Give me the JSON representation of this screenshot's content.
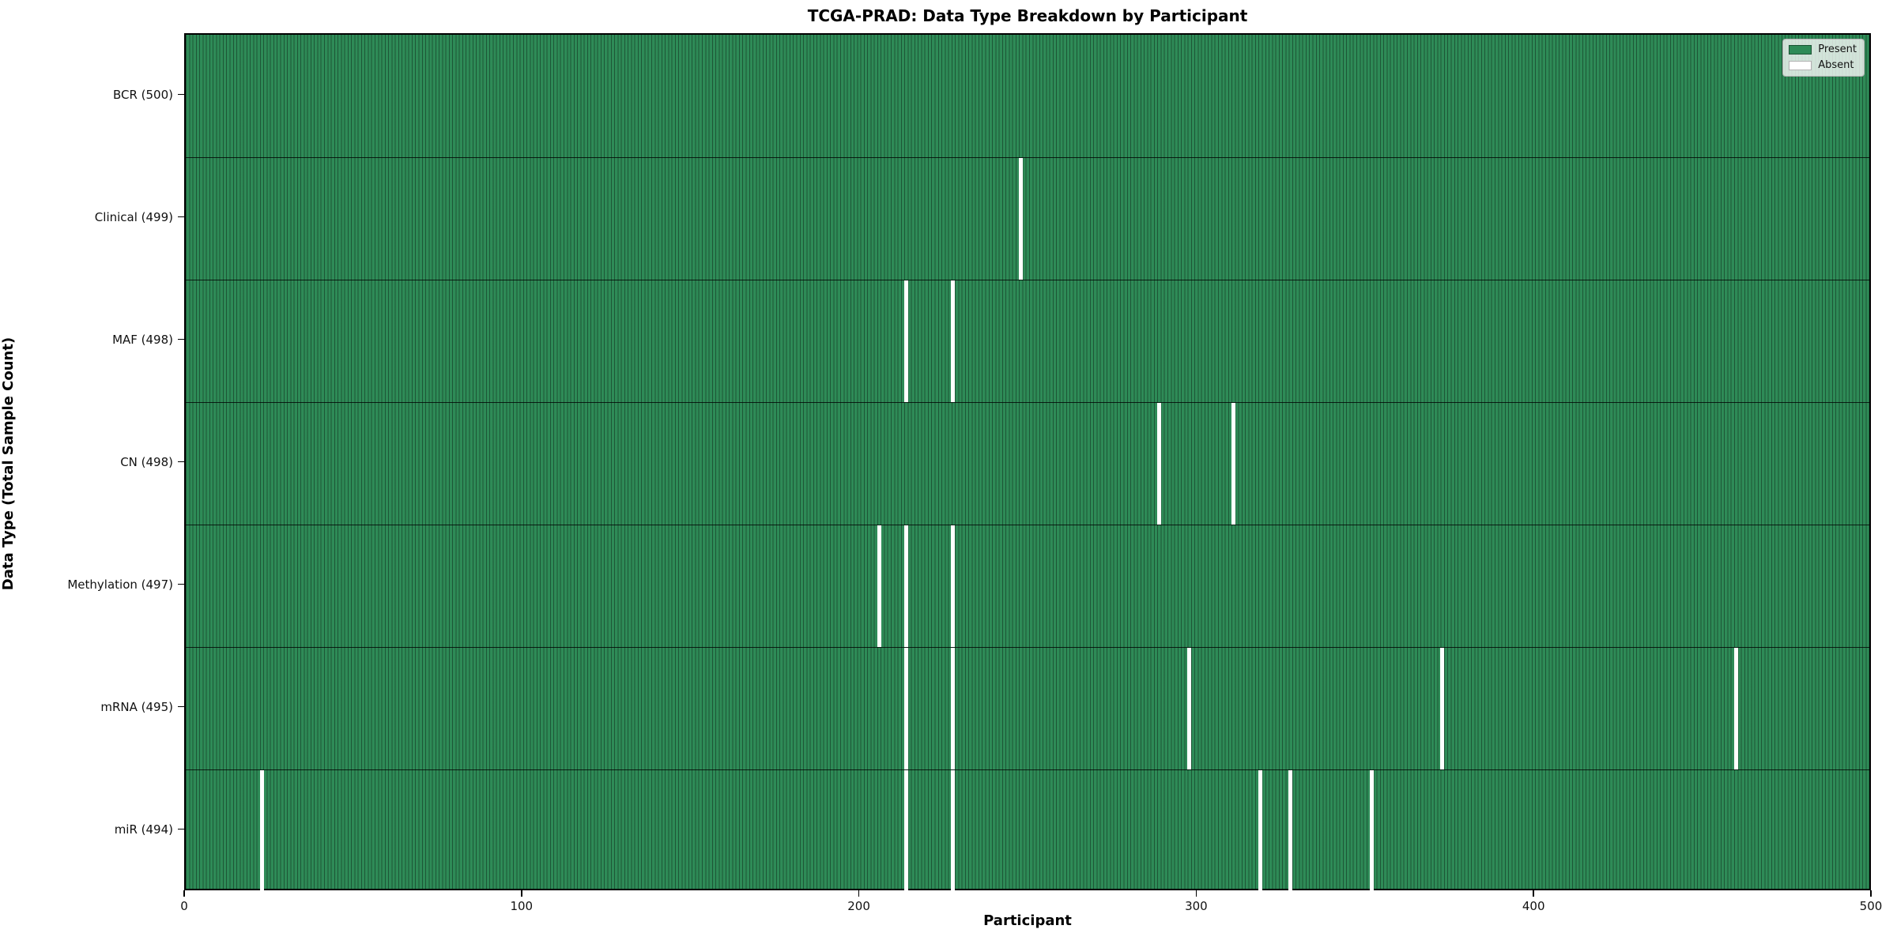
{
  "title": "TCGA-PRAD: Data Type Breakdown by Participant",
  "x_axis_title": "Participant",
  "y_axis_title": "Data Type (Total Sample Count)",
  "legend": {
    "present_label": "Present",
    "absent_label": "Absent"
  },
  "colors": {
    "present": "#2e8b57",
    "present_edge": "#1e5a39",
    "absent": "#ffffff",
    "row_divider": "#1a1a1a",
    "axis": "#000000",
    "legend_background": "#f4f4f4"
  },
  "chart_data": {
    "type": "heatmap",
    "title": "TCGA-PRAD: Data Type Breakdown by Participant",
    "xlabel": "Participant",
    "ylabel": "Data Type (Total Sample Count)",
    "x_range": [
      0,
      500
    ],
    "n_participants": 500,
    "x_ticks": [
      0,
      100,
      200,
      300,
      400,
      500
    ],
    "grid": false,
    "legend_position": "upper right",
    "legend_entries": [
      "Present",
      "Absent"
    ],
    "cell_values": {
      "present": 1,
      "absent": 0
    },
    "rows": [
      {
        "label": "BCR (500)",
        "data_type": "BCR",
        "total": 500,
        "absent_participants": []
      },
      {
        "label": "Clinical (499)",
        "data_type": "Clinical",
        "total": 499,
        "absent_participants": [
          247
        ]
      },
      {
        "label": "MAF (498)",
        "data_type": "MAF",
        "total": 498,
        "absent_participants": [
          213,
          227
        ]
      },
      {
        "label": "CN (498)",
        "data_type": "CN",
        "total": 498,
        "absent_participants": [
          288,
          310
        ]
      },
      {
        "label": "Methylation (497)",
        "data_type": "Methylation",
        "total": 497,
        "absent_participants": [
          205,
          213,
          227
        ]
      },
      {
        "label": "mRNA (495)",
        "data_type": "mRNA",
        "total": 495,
        "absent_participants": [
          213,
          227,
          297,
          372,
          459
        ]
      },
      {
        "label": "miR (494)",
        "data_type": "miR",
        "total": 494,
        "absent_participants": [
          22,
          213,
          227,
          318,
          327,
          351
        ]
      }
    ]
  }
}
